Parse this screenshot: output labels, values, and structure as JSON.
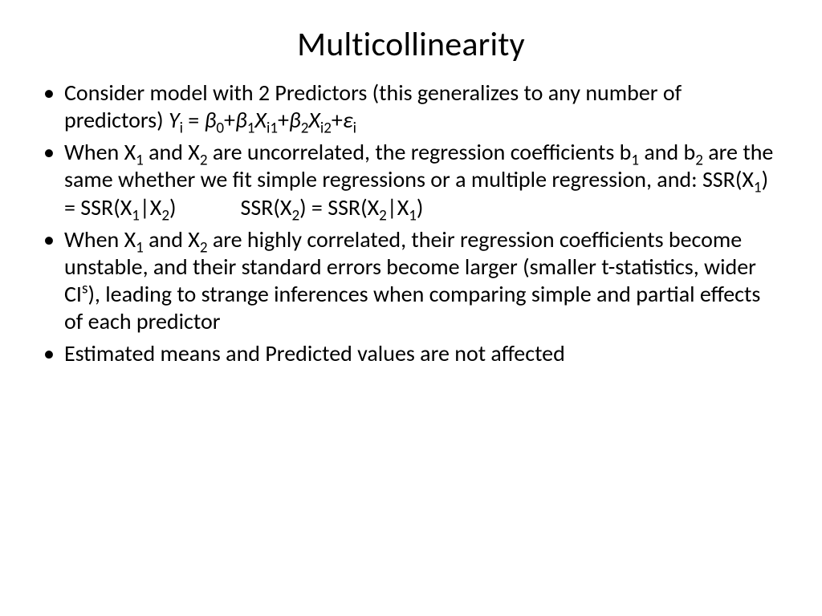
{
  "slide": {
    "title": "Multicollinearity",
    "background_color": "#ffffff",
    "text_color": "#000000",
    "title_fontsize": 42,
    "body_fontsize": 28,
    "font_family": "Calibri",
    "bullets": [
      {
        "pre": "Consider model with 2 Predictors (this generalizes to any number of predictors) ",
        "eq": {
          "Y": "Y",
          "i": "i",
          "eq": " = ",
          "b": "β",
          "s0": "0",
          "plus": "+",
          "s1": "1",
          "X": "X",
          "i1": "i1",
          "s2": "2",
          "i2": "i2",
          "eps": "ε"
        }
      },
      {
        "l1": "When X",
        "s1": "1",
        "l2": " and X",
        "s2": "2",
        "l3": " are uncorrelated, the regression coefficients b",
        "s3": "1",
        "l4": " and b",
        "s4": "2",
        "l5": " are the same whether we fit simple regressions or a multiple regression, and: SSR(X",
        "s5": "1",
        "l6": ") = SSR(X",
        "s6": "1",
        "l7": "|X",
        "s7": "2",
        "l8": ")",
        "gap": true,
        "l9": "SSR(X",
        "s9": "2",
        "l10": ") = SSR(X",
        "s10": "2",
        "l11": "|X",
        "s11": "1",
        "l12": ")"
      },
      {
        "l1": "When X",
        "s1": "1",
        "l2": " and X",
        "s2": "2",
        "l3": " are highly correlated, their regression coefficients become unstable, and their standard errors become larger (smaller t-statistics, wider CI",
        "sup": "s",
        "l4": "), leading to strange inferences when comparing simple and partial effects of each predictor"
      },
      {
        "text": "Estimated means and Predicted values are not affected"
      }
    ]
  }
}
